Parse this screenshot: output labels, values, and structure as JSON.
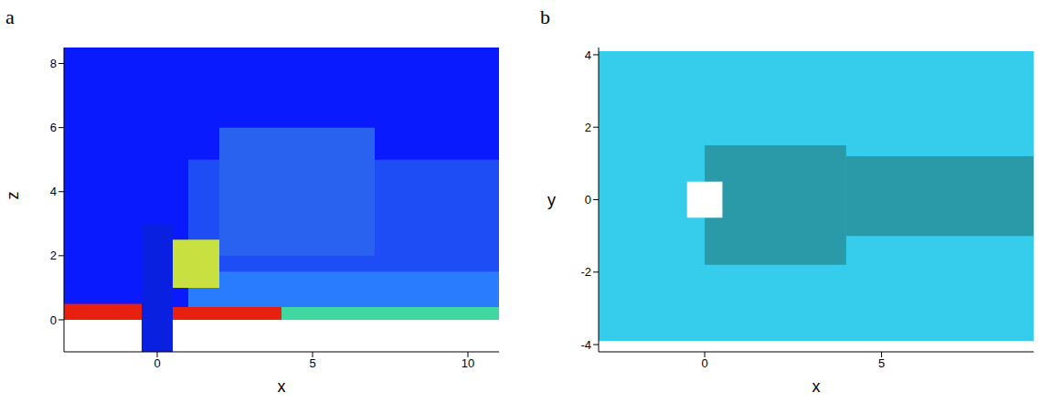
{
  "chart_data": [
    {
      "type": "contour",
      "title": "a",
      "xlabel": "x",
      "ylabel": "z",
      "xlim": [
        -3,
        11
      ],
      "ylim": [
        -1,
        8.5
      ],
      "xticks": [
        0,
        5,
        10
      ],
      "yticks": [
        0,
        2,
        4,
        6,
        8
      ],
      "regions": [
        {
          "x": [
            -3,
            11
          ],
          "y": [
            0,
            8.5
          ],
          "color": "#0a1aff"
        },
        {
          "x": [
            1,
            11
          ],
          "y": [
            0,
            5
          ],
          "color": "#1e4cf5"
        },
        {
          "x": [
            2,
            7
          ],
          "y": [
            2,
            6
          ],
          "color": "#2a62f0"
        },
        {
          "x": [
            1,
            11
          ],
          "y": [
            0,
            1.5
          ],
          "color": "#2a7cff"
        },
        {
          "x": [
            4,
            11
          ],
          "y": [
            0,
            0.4
          ],
          "color": "#40d8a0"
        },
        {
          "x": [
            -3,
            -0.4
          ],
          "y": [
            0,
            0.5
          ],
          "color": "#e8200f"
        },
        {
          "x": [
            0.5,
            4
          ],
          "y": [
            0,
            0.4
          ],
          "color": "#e8200f"
        },
        {
          "x": [
            0.5,
            2
          ],
          "y": [
            1,
            2.5
          ],
          "color": "#c8e040"
        },
        {
          "x": [
            -0.5,
            0.5
          ],
          "y": [
            -1,
            3
          ],
          "color": "#0a20e0"
        }
      ]
    },
    {
      "type": "contour",
      "title": "b",
      "xlabel": "x",
      "ylabel": "y",
      "xlim": [
        -3,
        9.3
      ],
      "ylim": [
        -4.2,
        4.2
      ],
      "xticks": [
        0,
        5
      ],
      "yticks": [
        -4,
        -2,
        0,
        2,
        4
      ],
      "regions": [
        {
          "x": [
            -3,
            9.3
          ],
          "y": [
            -3.9,
            4.1
          ],
          "color": "#36ccec"
        },
        {
          "x": [
            0,
            4
          ],
          "y": [
            -1.8,
            1.5
          ],
          "color": "#2a9aa8"
        },
        {
          "x": [
            4,
            9.3
          ],
          "y": [
            -1,
            1.2
          ],
          "color": "#2a9aa8"
        },
        {
          "x": [
            -0.5,
            0.5
          ],
          "y": [
            -0.5,
            0.5
          ],
          "color": "#ffffff"
        }
      ]
    }
  ]
}
